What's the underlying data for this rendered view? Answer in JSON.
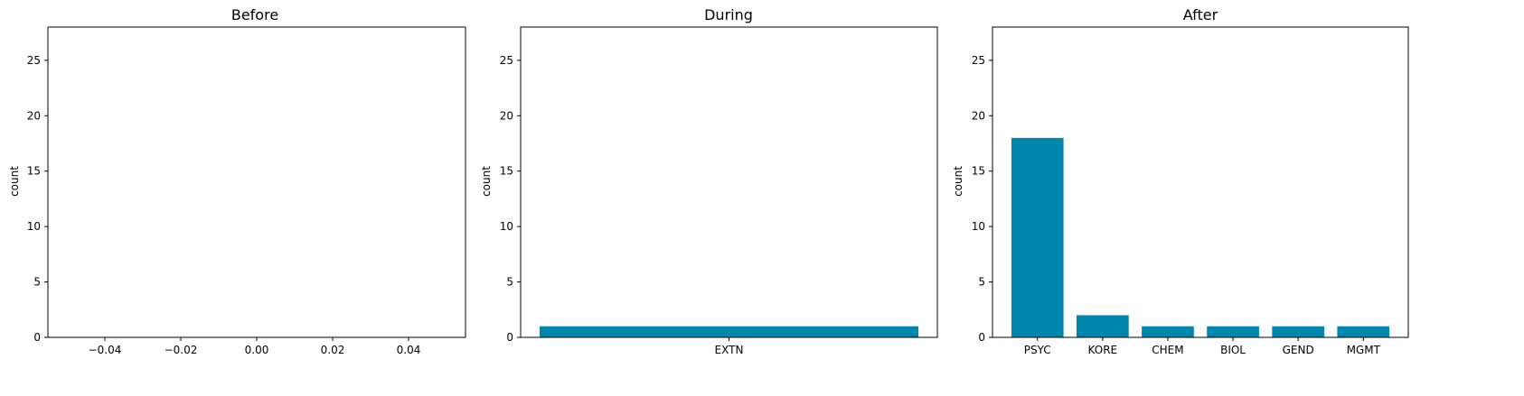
{
  "chart_data": [
    {
      "type": "bar",
      "title": "Before",
      "xlabel": "",
      "ylabel": "count",
      "categories": [],
      "values": [],
      "ylim": [
        0,
        28
      ],
      "yticks": [
        "0",
        "5",
        "10",
        "15",
        "20",
        "25"
      ],
      "xticks": [
        "−0.04",
        "−0.02",
        "0.00",
        "0.02",
        "0.04"
      ],
      "grid": false
    },
    {
      "type": "bar",
      "title": "During",
      "xlabel": "",
      "ylabel": "count",
      "categories": [
        "EXTN"
      ],
      "values": [
        1
      ],
      "ylim": [
        0,
        28
      ],
      "yticks": [
        "0",
        "5",
        "10",
        "15",
        "20",
        "25"
      ],
      "grid": false
    },
    {
      "type": "bar",
      "title": "After",
      "xlabel": "",
      "ylabel": "count",
      "categories": [
        "PSYC",
        "KORE",
        "CHEM",
        "BIOL",
        "GEND",
        "MGMT"
      ],
      "values": [
        18,
        2,
        1,
        1,
        1,
        1
      ],
      "ylim": [
        0,
        28
      ],
      "yticks": [
        "0",
        "5",
        "10",
        "15",
        "20",
        "25"
      ],
      "grid": false
    }
  ],
  "colors": {
    "bar": "#0085ad",
    "axis": "#000000"
  }
}
